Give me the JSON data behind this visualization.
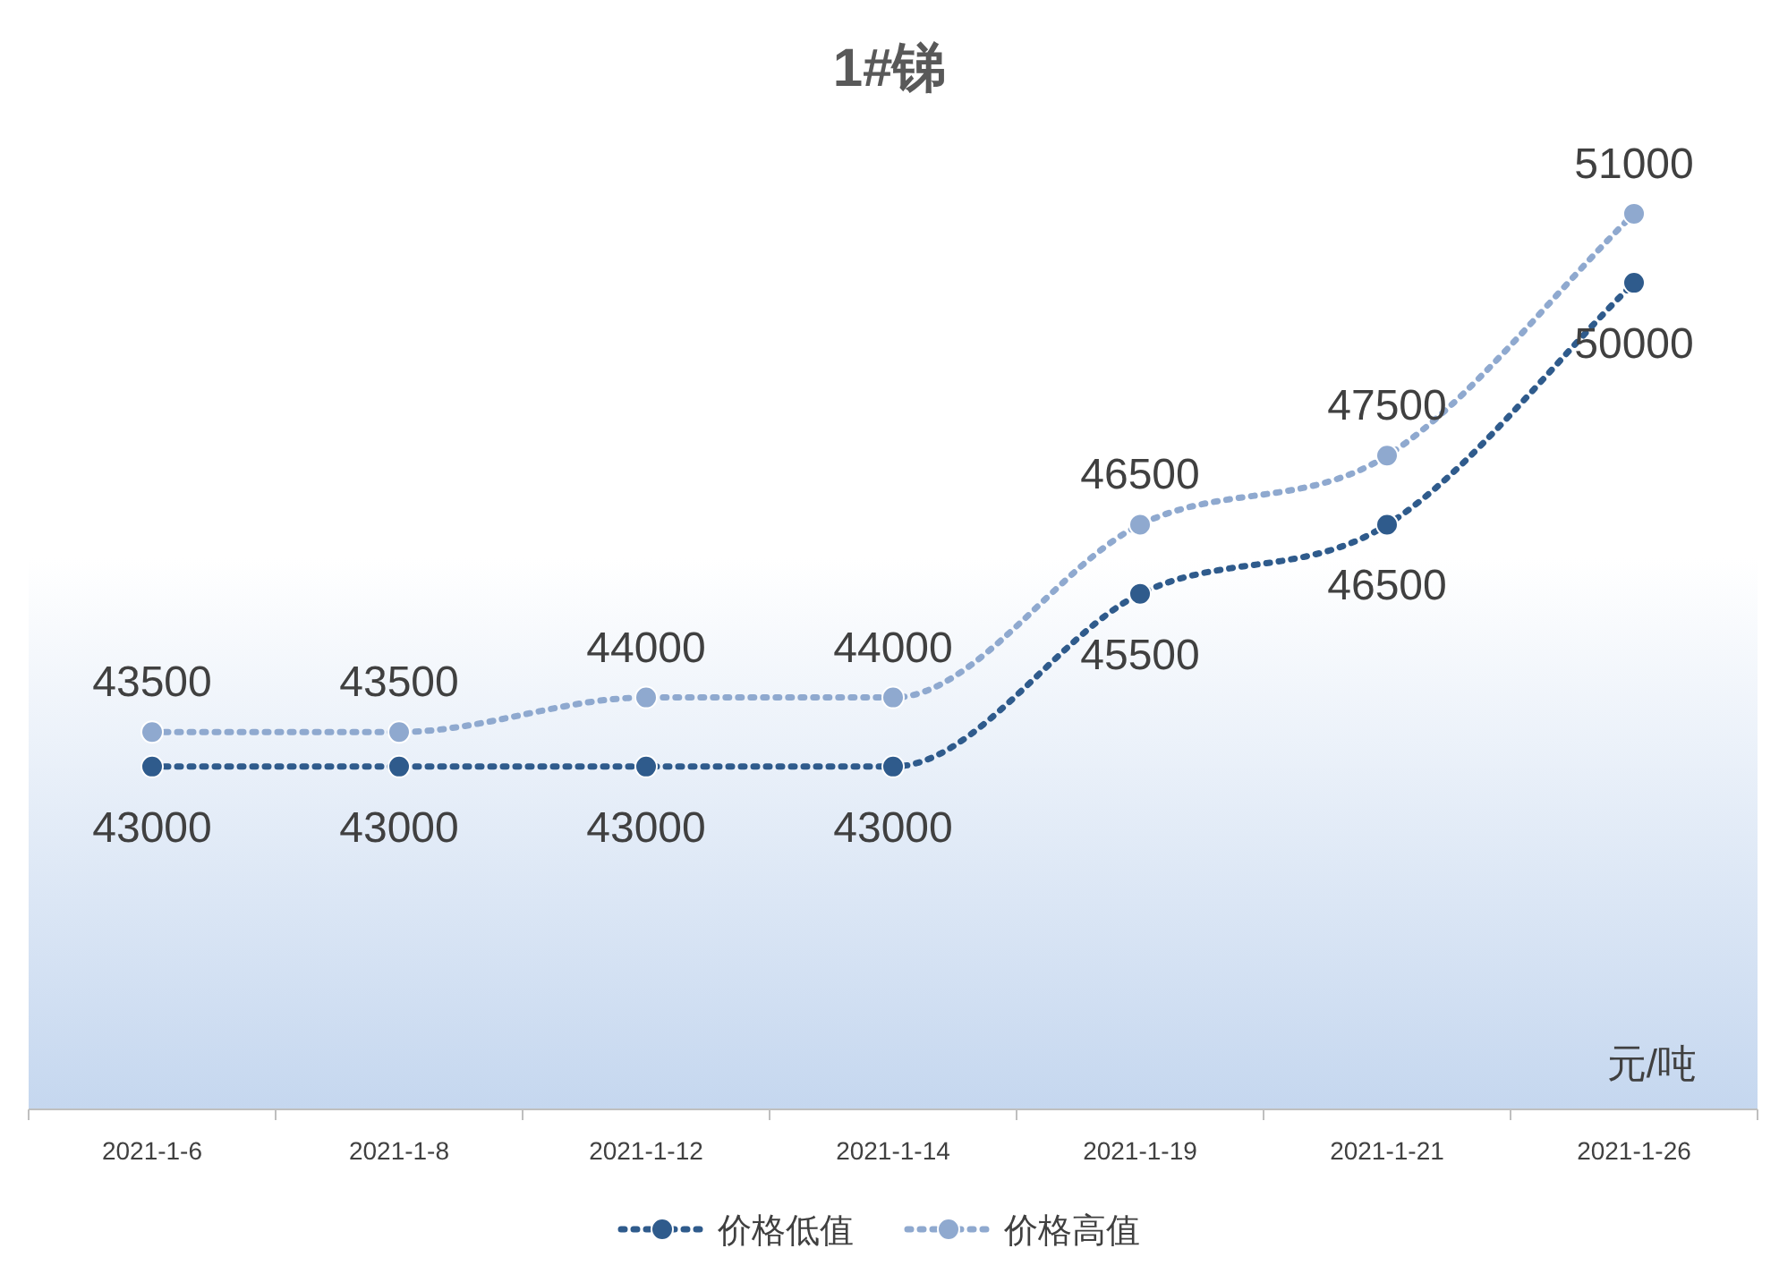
{
  "chart_data": {
    "type": "line",
    "title": "1#锑",
    "categories": [
      "2021-1-6",
      "2021-1-8",
      "2021-1-12",
      "2021-1-14",
      "2021-1-19",
      "2021-1-21",
      "2021-1-26"
    ],
    "series": [
      {
        "name": "价格低值",
        "color": "#2f5b8c",
        "values": [
          43000,
          43000,
          43000,
          43000,
          45500,
          46500,
          50000
        ]
      },
      {
        "name": "价格高值",
        "color": "#8fa9cf",
        "values": [
          43500,
          43500,
          44000,
          44000,
          46500,
          47500,
          51000
        ]
      }
    ],
    "data_labels": true,
    "annotations": [
      "元/吨"
    ],
    "legend": "bottom",
    "marker": "circle",
    "line_style": "dotted",
    "tick_labels": "x"
  }
}
